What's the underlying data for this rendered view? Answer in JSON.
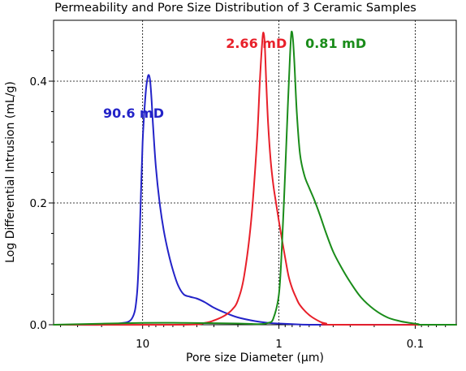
{
  "chart_data": {
    "type": "line",
    "title": "Permeability and Pore Size Distribution of 3 Ceramic Samples",
    "xlabel": "Pore size Diameter (µm)",
    "ylabel": "Log Differential Intrusion (mL/g)",
    "x_scale": "log",
    "x_reversed": true,
    "xlim": [
      45,
      0.05
    ],
    "ylim": [
      0,
      0.5
    ],
    "x_ticks": [
      {
        "value": 10,
        "label": "10"
      },
      {
        "value": 1,
        "label": "1"
      },
      {
        "value": 0.1,
        "label": "0.1"
      }
    ],
    "y_ticks": [
      {
        "value": 0.0,
        "label": "0.0"
      },
      {
        "value": 0.2,
        "label": "0.2"
      },
      {
        "value": 0.4,
        "label": "0.4"
      }
    ],
    "grid": true,
    "series": [
      {
        "color": "#2323c8",
        "x": [
          45,
          20,
          15,
          12,
          11,
          10.5,
          10,
          9.5,
          9.2,
          9.0,
          8.8,
          8.6,
          8.4,
          8.0,
          7.5,
          7.0,
          6.5,
          6.0,
          5.5,
          5.0,
          4.5,
          4.0,
          3.5,
          3.0,
          2.5,
          2.0,
          1.5,
          1.2,
          1.0,
          0.8,
          0.6,
          0.3,
          0.05
        ],
        "y": [
          0.0,
          0.0,
          0.002,
          0.01,
          0.05,
          0.15,
          0.3,
          0.38,
          0.405,
          0.41,
          0.4,
          0.37,
          0.33,
          0.26,
          0.2,
          0.155,
          0.12,
          0.09,
          0.065,
          0.05,
          0.046,
          0.043,
          0.037,
          0.028,
          0.02,
          0.012,
          0.006,
          0.003,
          0.002,
          0.001,
          0.0,
          0.0,
          0.0
        ]
      },
      {
        "color": "#e8202a",
        "x": [
          45,
          5.0,
          3.5,
          3.0,
          2.5,
          2.2,
          2.0,
          1.8,
          1.6,
          1.45,
          1.38,
          1.33,
          1.3,
          1.27,
          1.24,
          1.2,
          1.15,
          1.1,
          1.05,
          1.0,
          0.95,
          0.9,
          0.85,
          0.8,
          0.75,
          0.7,
          0.6,
          0.5,
          0.45,
          0.4,
          0.05
        ],
        "y": [
          0.0,
          0.0,
          0.003,
          0.007,
          0.015,
          0.025,
          0.04,
          0.08,
          0.17,
          0.3,
          0.4,
          0.46,
          0.48,
          0.46,
          0.4,
          0.33,
          0.27,
          0.23,
          0.2,
          0.17,
          0.14,
          0.11,
          0.08,
          0.06,
          0.045,
          0.032,
          0.016,
          0.005,
          0.002,
          0.0,
          0.0
        ]
      },
      {
        "color": "#1a8c1a",
        "x": [
          45,
          10,
          5,
          2,
          1.4,
          1.2,
          1.1,
          1.0,
          0.95,
          0.9,
          0.86,
          0.83,
          0.81,
          0.79,
          0.77,
          0.74,
          0.7,
          0.65,
          0.6,
          0.55,
          0.5,
          0.45,
          0.4,
          0.35,
          0.3,
          0.25,
          0.2,
          0.16,
          0.13,
          0.11,
          0.095,
          0.09,
          0.05
        ],
        "y": [
          0.0,
          0.003,
          0.003,
          0.002,
          0.001,
          0.003,
          0.01,
          0.05,
          0.13,
          0.25,
          0.36,
          0.44,
          0.48,
          0.47,
          0.43,
          0.35,
          0.28,
          0.245,
          0.225,
          0.205,
          0.18,
          0.15,
          0.12,
          0.095,
          0.07,
          0.045,
          0.025,
          0.012,
          0.006,
          0.003,
          0.001,
          0.0,
          0.0
        ]
      }
    ],
    "annotations": [
      {
        "text": "90.6 mD",
        "color": "#2323c8",
        "x": 19.5,
        "y": 0.34
      },
      {
        "text": "2.66 mD",
        "color": "#e8202a",
        "x": 2.45,
        "y": 0.455
      },
      {
        "text": "0.81 mD",
        "color": "#1a8c1a",
        "x": 0.64,
        "y": 0.455
      }
    ]
  }
}
